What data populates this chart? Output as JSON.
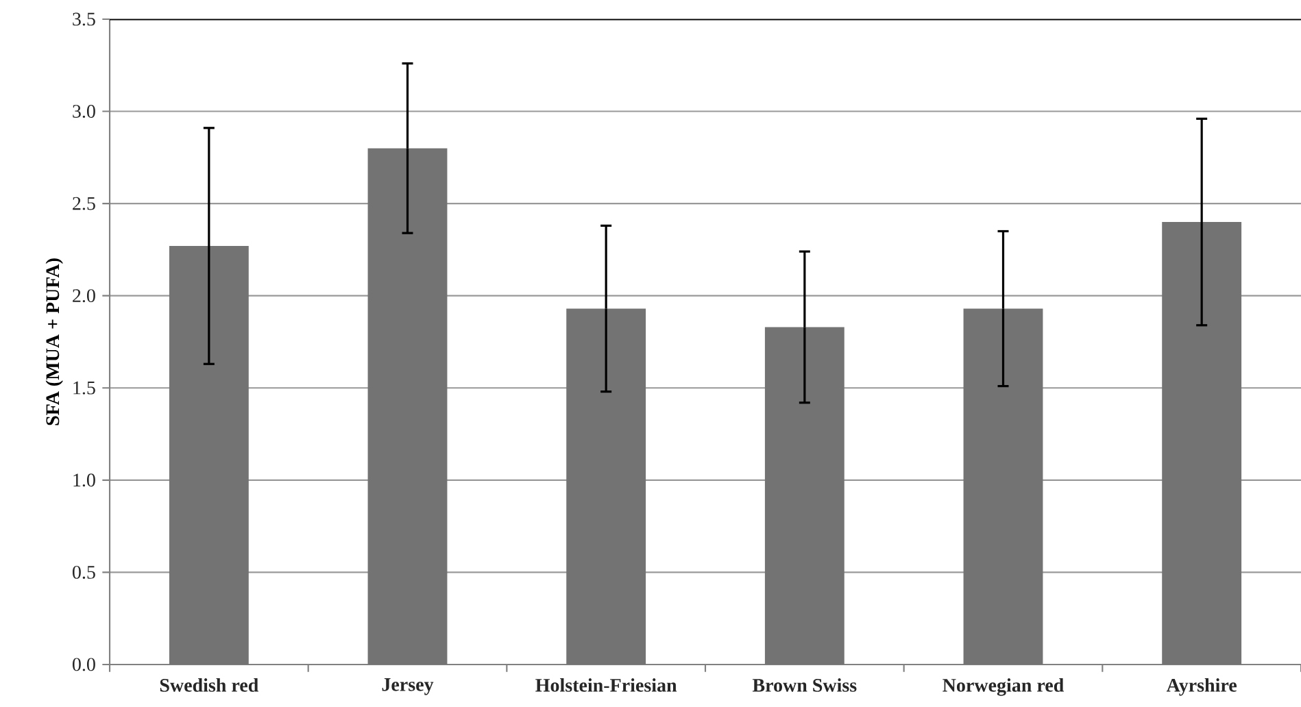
{
  "chart_data": {
    "type": "bar",
    "ylabel": "SFA (MUA + PUFA)",
    "categories": [
      "Swedish red",
      "Jersey",
      "Holstein-Friesian",
      "Brown Swiss",
      "Norwegian red",
      "Ayrshire"
    ],
    "values": [
      2.27,
      2.8,
      1.93,
      1.83,
      1.93,
      2.4
    ],
    "errors": [
      0.64,
      0.46,
      0.45,
      0.41,
      0.42,
      0.56
    ],
    "color": "#737373",
    "ylim": [
      0,
      3.5
    ],
    "yticks": [
      {
        "value": 0,
        "label": "0.0"
      },
      {
        "value": 0.5,
        "label": "0.5"
      },
      {
        "value": 1,
        "label": "1.0"
      },
      {
        "value": 1.5,
        "label": "1.5"
      },
      {
        "value": 2,
        "label": "2.0"
      },
      {
        "value": 2.5,
        "label": "2.5"
      },
      {
        "value": 3,
        "label": "3.0"
      },
      {
        "value": 3.5,
        "label": "3.5"
      }
    ],
    "grid": "y"
  }
}
